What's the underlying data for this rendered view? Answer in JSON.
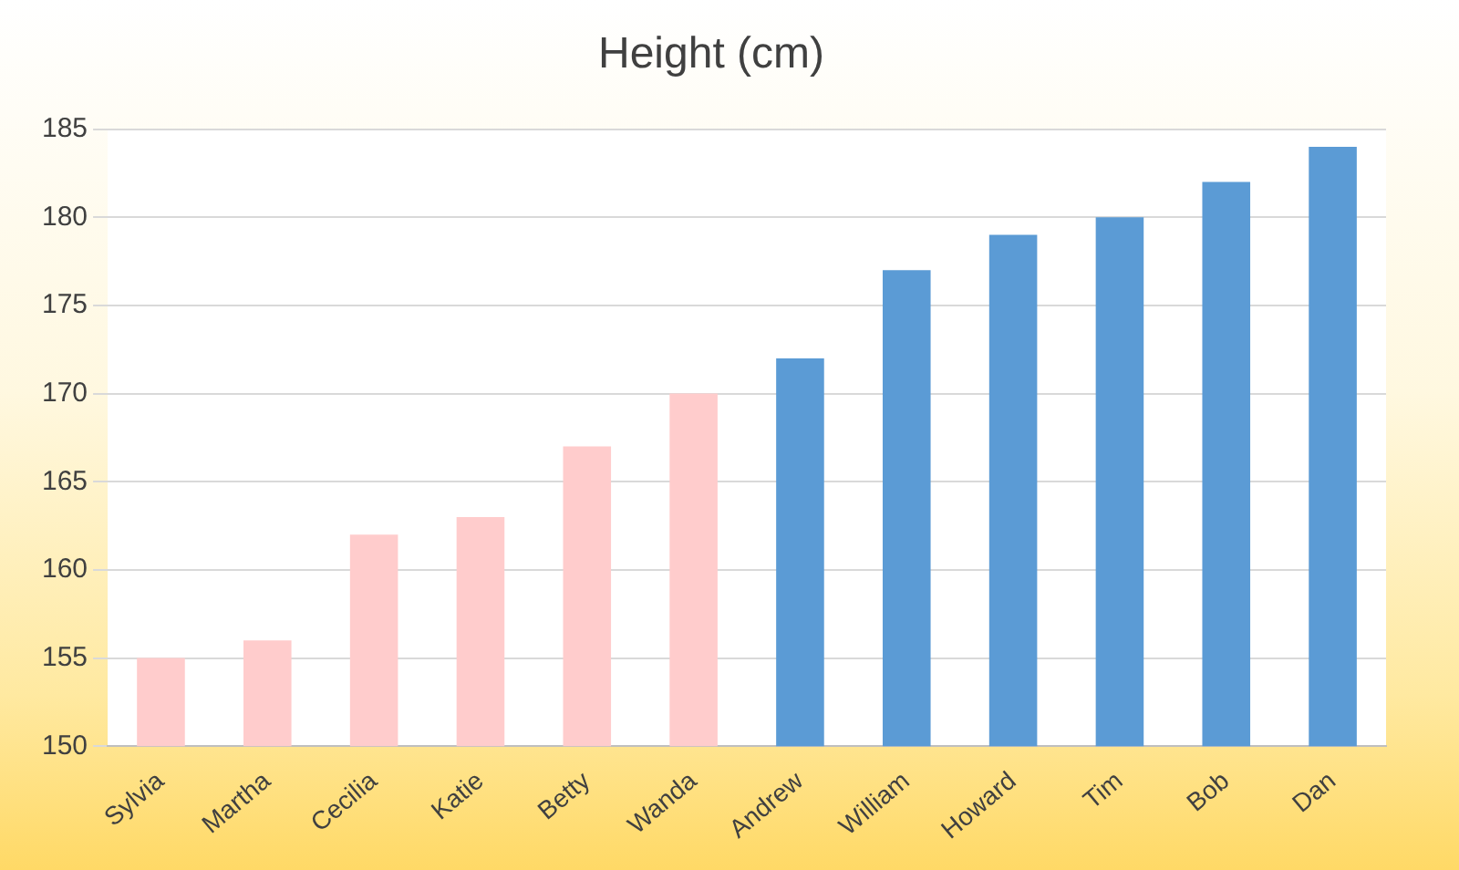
{
  "chart_data": {
    "type": "bar",
    "title": "Height (cm)",
    "categories": [
      "Sylvia",
      "Martha",
      "Cecilia",
      "Katie",
      "Betty",
      "Wanda",
      "Andrew",
      "William",
      "Howard",
      "Tim",
      "Bob",
      "Dan"
    ],
    "values": [
      155,
      156,
      162,
      163,
      167,
      170,
      172,
      177,
      179,
      180,
      182,
      184
    ],
    "colors": [
      "#ffcccc",
      "#ffcccc",
      "#ffcccc",
      "#ffcccc",
      "#ffcccc",
      "#ffcccc",
      "#5b9bd5",
      "#5b9bd5",
      "#5b9bd5",
      "#5b9bd5",
      "#5b9bd5",
      "#5b9bd5"
    ],
    "ylim": [
      150,
      185
    ],
    "yticks": [
      150,
      155,
      160,
      165,
      170,
      175,
      180,
      185
    ],
    "grid": "y",
    "legend": false
  }
}
